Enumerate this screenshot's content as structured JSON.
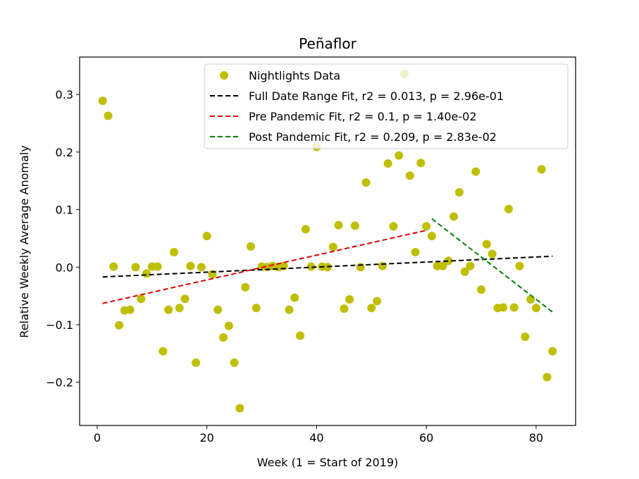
{
  "chart_data": {
    "type": "scatter",
    "title": "Peñaflor",
    "xlabel": "Week (1 = Start of 2019)",
    "ylabel": "Relative Weekly Average Anomaly",
    "xlim": [
      -3.2,
      87.2
    ],
    "ylim": [
      -0.275,
      0.365
    ],
    "xticks": [
      0,
      20,
      40,
      60,
      80
    ],
    "xtick_labels": [
      "0",
      "20",
      "40",
      "60",
      "80"
    ],
    "yticks": [
      -0.2,
      -0.1,
      0.0,
      0.1,
      0.2,
      0.3
    ],
    "ytick_labels": [
      "−0.2",
      "−0.1",
      "0.0",
      "0.1",
      "0.2",
      "0.3"
    ],
    "grid": false,
    "legend_position": "top-right",
    "colors": {
      "points": "#bfbf00",
      "full_fit": "#000000",
      "pre_fit": "#e00000",
      "post_fit": "#008000"
    },
    "scatter": {
      "name": "Nightlights Data",
      "points": [
        [
          1,
          0.289
        ],
        [
          2,
          0.263
        ],
        [
          3,
          0.001
        ],
        [
          4,
          -0.101
        ],
        [
          5,
          -0.075
        ],
        [
          6,
          -0.074
        ],
        [
          7,
          0.0
        ],
        [
          8,
          -0.055
        ],
        [
          9,
          -0.011
        ],
        [
          10,
          0.001
        ],
        [
          11,
          0.001
        ],
        [
          12,
          -0.146
        ],
        [
          13,
          -0.074
        ],
        [
          14,
          0.026
        ],
        [
          15,
          -0.071
        ],
        [
          16,
          -0.055
        ],
        [
          17,
          0.002
        ],
        [
          18,
          -0.166
        ],
        [
          19,
          0.0
        ],
        [
          20,
          0.054
        ],
        [
          21,
          -0.012
        ],
        [
          22,
          -0.074
        ],
        [
          23,
          -0.122
        ],
        [
          24,
          -0.102
        ],
        [
          25,
          -0.166
        ],
        [
          26,
          -0.245
        ],
        [
          27,
          -0.035
        ],
        [
          28,
          0.036
        ],
        [
          29,
          -0.071
        ],
        [
          30,
          0.001
        ],
        [
          31,
          0.0
        ],
        [
          32,
          0.002
        ],
        [
          33,
          0.0
        ],
        [
          34,
          0.002
        ],
        [
          35,
          -0.074
        ],
        [
          36,
          -0.053
        ],
        [
          37,
          -0.119
        ],
        [
          38,
          0.066
        ],
        [
          39,
          0.001
        ],
        [
          40,
          0.209
        ],
        [
          41,
          0.001
        ],
        [
          42,
          0.0
        ],
        [
          43,
          0.035
        ],
        [
          44,
          0.073
        ],
        [
          45,
          -0.072
        ],
        [
          46,
          -0.056
        ],
        [
          47,
          0.072
        ],
        [
          48,
          0.0
        ],
        [
          49,
          0.147
        ],
        [
          50,
          -0.071
        ],
        [
          51,
          -0.059
        ],
        [
          52,
          0.002
        ],
        [
          53,
          0.18
        ],
        [
          54,
          0.071
        ],
        [
          55,
          0.194
        ],
        [
          56,
          0.336
        ],
        [
          57,
          0.159
        ],
        [
          58,
          0.026
        ],
        [
          59,
          0.181
        ],
        [
          60,
          0.071
        ],
        [
          61,
          0.054
        ],
        [
          62,
          0.002
        ],
        [
          63,
          0.002
        ],
        [
          64,
          0.011
        ],
        [
          65,
          0.088
        ],
        [
          66,
          0.13
        ],
        [
          67,
          -0.008
        ],
        [
          68,
          0.002
        ],
        [
          69,
          0.166
        ],
        [
          70,
          -0.039
        ],
        [
          71,
          0.04
        ],
        [
          72,
          0.023
        ],
        [
          73,
          -0.071
        ],
        [
          74,
          -0.07
        ],
        [
          75,
          0.101
        ],
        [
          76,
          -0.07
        ],
        [
          77,
          0.002
        ],
        [
          78,
          -0.121
        ],
        [
          79,
          -0.056
        ],
        [
          80,
          -0.071
        ],
        [
          81,
          0.17
        ],
        [
          82,
          -0.191
        ],
        [
          83,
          -0.146
        ]
      ]
    },
    "fits": [
      {
        "name": "Full Date Range Fit, r2 = 0.013, p = 2.96e-01",
        "key": "full_fit",
        "x": [
          1,
          83
        ],
        "y": [
          -0.017,
          0.019
        ]
      },
      {
        "name": "Pre Pandemic Fit, r2 = 0.1, p = 1.40e-02",
        "key": "pre_fit",
        "x": [
          1,
          60
        ],
        "y": [
          -0.063,
          0.064
        ]
      },
      {
        "name": "Post Pandemic Fit, r2 = 0.209, p = 2.83e-02",
        "key": "post_fit",
        "x": [
          61,
          83
        ],
        "y": [
          0.084,
          -0.078
        ]
      }
    ]
  }
}
